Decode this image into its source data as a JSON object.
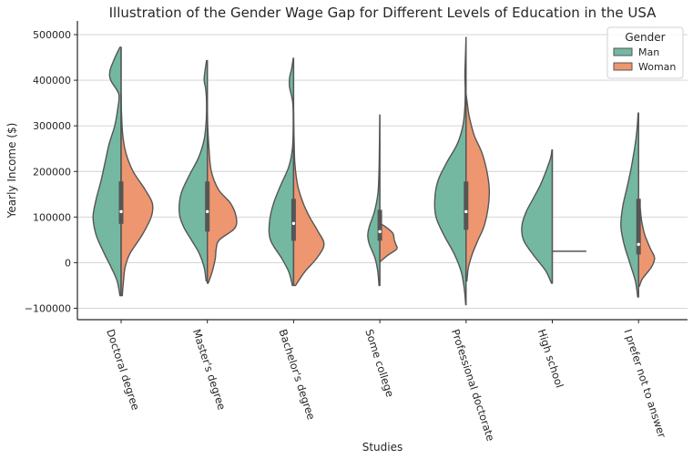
{
  "chart_data": {
    "type": "violin",
    "split": true,
    "title": "Illustration of the Gender Wage Gap for Different Levels of Education in the USA",
    "xlabel": "Studies",
    "ylabel": "Yearly Income ($)",
    "ylim": [
      -125000,
      530000
    ],
    "yticks": [
      -100000,
      0,
      100000,
      200000,
      300000,
      400000,
      500000
    ],
    "ytick_labels": [
      "−100000",
      "0",
      "100000",
      "200000",
      "300000",
      "400000",
      "500000"
    ],
    "grid": "y",
    "legend": {
      "title": "Gender",
      "placement": "top-right",
      "entries": [
        {
          "name": "Man",
          "color": "#74b8a2"
        },
        {
          "name": "Woman",
          "color": "#ee9670"
        }
      ]
    },
    "categories": [
      "Doctoral degree",
      "Master's degree",
      "Bachelor's degree",
      "Some college",
      "Professional doctorate",
      "High school",
      "I prefer not to answer"
    ],
    "violins": [
      {
        "man": {
          "min": -72000,
          "max": 472000,
          "profile": [
            [
              -72000,
              0.03
            ],
            [
              -40000,
              0.1
            ],
            [
              -10000,
              0.25
            ],
            [
              20000,
              0.42
            ],
            [
              60000,
              0.62
            ],
            [
              100000,
              0.7
            ],
            [
              140000,
              0.62
            ],
            [
              180000,
              0.5
            ],
            [
              220000,
              0.4
            ],
            [
              260000,
              0.3
            ],
            [
              300000,
              0.16
            ],
            [
              340000,
              0.08
            ],
            [
              370000,
              0.06
            ],
            [
              400000,
              0.26
            ],
            [
              420000,
              0.28
            ],
            [
              440000,
              0.2
            ],
            [
              460000,
              0.1
            ],
            [
              472000,
              0.03
            ]
          ]
        },
        "woman": {
          "min": -72000,
          "max": 370000,
          "profile": [
            [
              -72000,
              0.03
            ],
            [
              -40000,
              0.06
            ],
            [
              -10000,
              0.1
            ],
            [
              20000,
              0.22
            ],
            [
              60000,
              0.52
            ],
            [
              100000,
              0.75
            ],
            [
              130000,
              0.78
            ],
            [
              160000,
              0.6
            ],
            [
              200000,
              0.3
            ],
            [
              240000,
              0.12
            ],
            [
              280000,
              0.04
            ],
            [
              330000,
              0.01
            ],
            [
              370000,
              0.0
            ]
          ]
        },
        "box": {
          "q1": 85000,
          "median": 112000,
          "q3": 178000
        }
      },
      {
        "man": {
          "min": -40000,
          "max": 443000,
          "profile": [
            [
              -40000,
              0.03
            ],
            [
              -10000,
              0.08
            ],
            [
              20000,
              0.2
            ],
            [
              50000,
              0.4
            ],
            [
              80000,
              0.6
            ],
            [
              110000,
              0.7
            ],
            [
              150000,
              0.66
            ],
            [
              190000,
              0.46
            ],
            [
              230000,
              0.22
            ],
            [
              270000,
              0.08
            ],
            [
              310000,
              0.03
            ],
            [
              350000,
              0.02
            ],
            [
              380000,
              0.04
            ],
            [
              400000,
              0.08
            ],
            [
              420000,
              0.06
            ],
            [
              443000,
              0.02
            ]
          ]
        },
        "woman": {
          "min": -45000,
          "max": 340000,
          "profile": [
            [
              -45000,
              0.02
            ],
            [
              -20000,
              0.12
            ],
            [
              10000,
              0.2
            ],
            [
              30000,
              0.22
            ],
            [
              50000,
              0.3
            ],
            [
              75000,
              0.68
            ],
            [
              100000,
              0.72
            ],
            [
              130000,
              0.58
            ],
            [
              160000,
              0.28
            ],
            [
              200000,
              0.1
            ],
            [
              250000,
              0.04
            ],
            [
              300000,
              0.01
            ],
            [
              340000,
              0.0
            ]
          ]
        },
        "box": {
          "q1": 68000,
          "median": 112000,
          "q3": 178000
        }
      },
      {
        "man": {
          "min": -50000,
          "max": 448000,
          "profile": [
            [
              -50000,
              0.03
            ],
            [
              -20000,
              0.12
            ],
            [
              10000,
              0.3
            ],
            [
              50000,
              0.58
            ],
            [
              90000,
              0.6
            ],
            [
              130000,
              0.5
            ],
            [
              170000,
              0.32
            ],
            [
              210000,
              0.12
            ],
            [
              250000,
              0.03
            ],
            [
              300000,
              0.01
            ],
            [
              350000,
              0.02
            ],
            [
              385000,
              0.1
            ],
            [
              405000,
              0.1
            ],
            [
              425000,
              0.05
            ],
            [
              448000,
              0.01
            ]
          ]
        },
        "woman": {
          "min": -50000,
          "max": 330000,
          "profile": [
            [
              -50000,
              0.05
            ],
            [
              -20000,
              0.28
            ],
            [
              10000,
              0.58
            ],
            [
              40000,
              0.76
            ],
            [
              70000,
              0.6
            ],
            [
              100000,
              0.4
            ],
            [
              130000,
              0.24
            ],
            [
              170000,
              0.1
            ],
            [
              220000,
              0.03
            ],
            [
              280000,
              0.01
            ],
            [
              330000,
              0.0
            ]
          ]
        },
        "box": {
          "q1": 48000,
          "median": 86000,
          "q3": 140000
        }
      },
      {
        "man": {
          "min": -50000,
          "max": 325000,
          "profile": [
            [
              -50000,
              0.02
            ],
            [
              -20000,
              0.05
            ],
            [
              10000,
              0.12
            ],
            [
              40000,
              0.26
            ],
            [
              60000,
              0.3
            ],
            [
              80000,
              0.26
            ],
            [
              110000,
              0.14
            ],
            [
              150000,
              0.05
            ],
            [
              200000,
              0.02
            ],
            [
              260000,
              0.01
            ],
            [
              325000,
              0.0
            ]
          ]
        },
        "woman": {
          "min": 3000,
          "max": 85000,
          "profile": [
            [
              3000,
              0.02
            ],
            [
              15000,
              0.18
            ],
            [
              30000,
              0.42
            ],
            [
              40000,
              0.4
            ],
            [
              50000,
              0.36
            ],
            [
              65000,
              0.32
            ],
            [
              80000,
              0.12
            ],
            [
              85000,
              0.02
            ]
          ]
        },
        "box": {
          "q1": 48000,
          "median": 68000,
          "q3": 116000
        }
      },
      {
        "man": {
          "min": -92000,
          "max": 495000,
          "profile": [
            [
              -92000,
              0.01
            ],
            [
              -60000,
              0.04
            ],
            [
              -20000,
              0.12
            ],
            [
              20000,
              0.3
            ],
            [
              60000,
              0.55
            ],
            [
              100000,
              0.75
            ],
            [
              140000,
              0.78
            ],
            [
              180000,
              0.7
            ],
            [
              220000,
              0.48
            ],
            [
              260000,
              0.22
            ],
            [
              300000,
              0.08
            ],
            [
              340000,
              0.03
            ],
            [
              380000,
              0.02
            ],
            [
              410000,
              0.03
            ],
            [
              440000,
              0.02
            ],
            [
              470000,
              0.01
            ],
            [
              495000,
              0.0
            ]
          ]
        },
        "woman": {
          "min": -40000,
          "max": 370000,
          "profile": [
            [
              -40000,
              0.02
            ],
            [
              -10000,
              0.06
            ],
            [
              20000,
              0.16
            ],
            [
              50000,
              0.3
            ],
            [
              80000,
              0.45
            ],
            [
              120000,
              0.55
            ],
            [
              160000,
              0.58
            ],
            [
              200000,
              0.52
            ],
            [
              240000,
              0.4
            ],
            [
              280000,
              0.2
            ],
            [
              320000,
              0.08
            ],
            [
              350000,
              0.03
            ],
            [
              370000,
              0.0
            ]
          ]
        },
        "box": {
          "q1": 72000,
          "median": 112000,
          "q3": 178000
        }
      },
      {
        "man": {
          "min": -45000,
          "max": 247000,
          "profile": [
            [
              -45000,
              0.02
            ],
            [
              -20000,
              0.15
            ],
            [
              0,
              0.32
            ],
            [
              20000,
              0.5
            ],
            [
              50000,
              0.72
            ],
            [
              80000,
              0.76
            ],
            [
              110000,
              0.66
            ],
            [
              140000,
              0.48
            ],
            [
              170000,
              0.3
            ],
            [
              200000,
              0.16
            ],
            [
              230000,
              0.04
            ],
            [
              247000,
              0.01
            ]
          ]
        },
        "woman": {
          "min": 25000,
          "max": 25000,
          "profile": []
        },
        "woman_line": {
          "value": 25000
        },
        "box": null
      },
      {
        "man": {
          "min": -75000,
          "max": 328000,
          "profile": [
            [
              -75000,
              0.02
            ],
            [
              -40000,
              0.08
            ],
            [
              0,
              0.22
            ],
            [
              40000,
              0.36
            ],
            [
              80000,
              0.44
            ],
            [
              120000,
              0.4
            ],
            [
              160000,
              0.3
            ],
            [
              200000,
              0.2
            ],
            [
              250000,
              0.1
            ],
            [
              290000,
              0.04
            ],
            [
              328000,
              0.01
            ]
          ]
        },
        "woman": {
          "min": -52000,
          "max": 140000,
          "profile": [
            [
              -52000,
              0.02
            ],
            [
              -35000,
              0.1
            ],
            [
              -10000,
              0.32
            ],
            [
              10000,
              0.4
            ],
            [
              30000,
              0.3
            ],
            [
              60000,
              0.16
            ],
            [
              90000,
              0.08
            ],
            [
              120000,
              0.04
            ],
            [
              140000,
              0.01
            ]
          ]
        },
        "box": {
          "q1": 18000,
          "median": 40000,
          "q3": 140000
        }
      }
    ]
  }
}
